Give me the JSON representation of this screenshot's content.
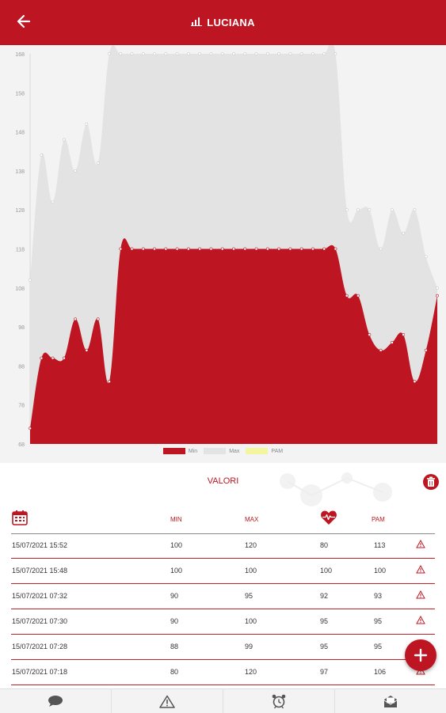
{
  "header": {
    "title": "LUCIANA"
  },
  "chart_data": {
    "type": "area",
    "ylim": [
      68,
      168
    ],
    "y_ticks": [
      "168",
      "158",
      "148",
      "138",
      "128",
      "118",
      "108",
      "98",
      "88",
      "78",
      "68"
    ],
    "series": [
      {
        "name": "Min",
        "color": "#bd1622",
        "values": [
          72,
          90,
          90,
          90,
          100,
          92,
          100,
          84,
          118,
          118,
          118,
          118,
          118,
          118,
          118,
          118,
          118,
          118,
          118,
          118,
          118,
          118,
          118,
          118,
          118,
          118,
          118,
          118,
          106,
          106,
          96,
          92,
          94,
          96,
          84,
          92,
          106
        ]
      },
      {
        "name": "Max",
        "color": "#e3e3e3",
        "values": [
          110,
          142,
          130,
          146,
          138,
          150,
          140,
          168,
          168,
          168,
          168,
          168,
          168,
          168,
          168,
          168,
          168,
          168,
          168,
          168,
          168,
          168,
          168,
          168,
          168,
          168,
          168,
          168,
          128,
          128,
          128,
          118,
          128,
          122,
          128,
          116,
          108
        ]
      },
      {
        "name": "PAM",
        "color": "#f3f5a0",
        "values": []
      }
    ]
  },
  "legend": [
    {
      "label": "Min",
      "color": "#bd1622"
    },
    {
      "label": "Max",
      "color": "#e3e3e3"
    },
    {
      "label": "PAM",
      "color": "#f3f5a0"
    }
  ],
  "values_section": {
    "title": "VALORI",
    "headers": {
      "min": "MIN",
      "max": "MAX",
      "pam": "PAM"
    },
    "rows": [
      {
        "date": "15/07/2021 15:52",
        "min": "100",
        "max": "120",
        "bpm": "80",
        "pam": "113"
      },
      {
        "date": "15/07/2021 15:48",
        "min": "100",
        "max": "100",
        "bpm": "100",
        "pam": "100"
      },
      {
        "date": "15/07/2021 07:32",
        "min": "90",
        "max": "95",
        "bpm": "92",
        "pam": "93"
      },
      {
        "date": "15/07/2021 07:30",
        "min": "90",
        "max": "100",
        "bpm": "95",
        "pam": "95"
      },
      {
        "date": "15/07/2021 07:28",
        "min": "88",
        "max": "99",
        "bpm": "95",
        "pam": "95"
      },
      {
        "date": "15/07/2021 07:18",
        "min": "80",
        "max": "120",
        "bpm": "97",
        "pam": "106"
      }
    ]
  },
  "icons": {
    "back": "arrow-left-icon",
    "stats": "bar-chart-icon",
    "trash": "trash-icon",
    "calendar": "calendar-icon",
    "heart": "heart-pulse-icon",
    "warning": "warning-icon",
    "add": "plus-icon",
    "nav": [
      "chat-icon",
      "alert-icon",
      "alarm-clock-icon",
      "mail-icon"
    ]
  }
}
